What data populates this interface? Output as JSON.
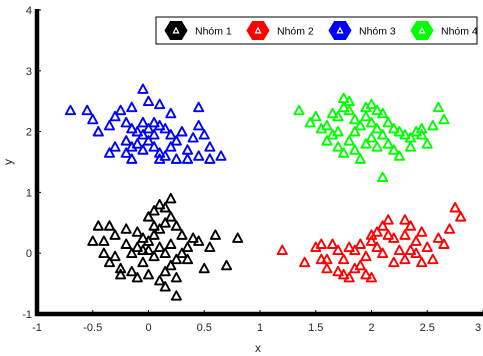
{
  "chart_data": {
    "type": "scatter",
    "title": "",
    "xlabel": "x",
    "ylabel": "y",
    "xlim": [
      -1,
      3
    ],
    "ylim": [
      -1,
      4
    ],
    "x_ticks": [
      "-1",
      "-0.5",
      "0",
      "0.5",
      "1",
      "1.5",
      "2",
      "2.5",
      "3"
    ],
    "y_ticks": [
      "-1",
      "0",
      "1",
      "2",
      "3",
      "4"
    ],
    "grid": false,
    "legend_placement": "top-right",
    "marker": "triangle-outline",
    "series": [
      {
        "name": "Nhóm 1",
        "color": "#000000",
        "points": [
          [
            -0.45,
            0.45
          ],
          [
            -0.35,
            0.45
          ],
          [
            -0.5,
            0.2
          ],
          [
            -0.4,
            0.2
          ],
          [
            -0.3,
            0.3
          ],
          [
            -0.2,
            0.4
          ],
          [
            -0.1,
            0.35
          ],
          [
            -0.05,
            0.25
          ],
          [
            0.0,
            0.2
          ],
          [
            0.05,
            0.3
          ],
          [
            0.1,
            0.4
          ],
          [
            0.15,
            0.5
          ],
          [
            0.2,
            0.6
          ],
          [
            0.25,
            0.45
          ],
          [
            0.3,
            0.3
          ],
          [
            0.0,
            0.6
          ],
          [
            0.05,
            0.7
          ],
          [
            0.15,
            0.75
          ],
          [
            0.2,
            0.9
          ],
          [
            0.1,
            0.8
          ],
          [
            -0.15,
            0.0
          ],
          [
            -0.1,
            0.1
          ],
          [
            0.0,
            0.05
          ],
          [
            0.05,
            -0.05
          ],
          [
            0.1,
            0.1
          ],
          [
            0.15,
            0.0
          ],
          [
            0.2,
            0.15
          ],
          [
            0.25,
            -0.1
          ],
          [
            0.3,
            0.0
          ],
          [
            0.35,
            -0.1
          ],
          [
            -0.4,
            0.0
          ],
          [
            -0.3,
            -0.05
          ],
          [
            -0.35,
            -0.15
          ],
          [
            -0.25,
            -0.25
          ],
          [
            -0.15,
            -0.3
          ],
          [
            -0.05,
            -0.15
          ],
          [
            -0.25,
            -0.35
          ],
          [
            -0.1,
            -0.4
          ],
          [
            0.0,
            -0.35
          ],
          [
            0.1,
            -0.45
          ],
          [
            0.15,
            -0.3
          ],
          [
            0.2,
            -0.2
          ],
          [
            0.25,
            -0.4
          ],
          [
            0.35,
            0.1
          ],
          [
            0.4,
            0.25
          ],
          [
            0.45,
            0.2
          ],
          [
            0.55,
            0.1
          ],
          [
            0.6,
            0.3
          ],
          [
            0.7,
            -0.2
          ],
          [
            0.8,
            0.25
          ],
          [
            0.5,
            -0.25
          ],
          [
            0.25,
            -0.7
          ],
          [
            0.15,
            -0.55
          ],
          [
            -0.2,
            0.15
          ],
          [
            0.05,
            0.45
          ],
          [
            -0.05,
            0.05
          ]
        ]
      },
      {
        "name": "Nhóm 2",
        "color": "#ff0000",
        "points": [
          [
            1.2,
            0.05
          ],
          [
            1.4,
            -0.15
          ],
          [
            1.5,
            0.1
          ],
          [
            1.55,
            0.15
          ],
          [
            1.6,
            -0.1
          ],
          [
            1.65,
            0.15
          ],
          [
            1.7,
            -0.3
          ],
          [
            1.75,
            -0.1
          ],
          [
            1.8,
            0.1
          ],
          [
            1.85,
            0.05
          ],
          [
            1.9,
            -0.2
          ],
          [
            1.95,
            -0.05
          ],
          [
            2.0,
            0.2
          ],
          [
            2.05,
            0.35
          ],
          [
            2.1,
            0.45
          ],
          [
            2.15,
            0.3
          ],
          [
            2.2,
            0.25
          ],
          [
            2.25,
            0.05
          ],
          [
            2.3,
            -0.1
          ],
          [
            2.35,
            0.05
          ],
          [
            2.4,
            0.2
          ],
          [
            2.45,
            0.35
          ],
          [
            2.5,
            0.1
          ],
          [
            2.55,
            -0.1
          ],
          [
            2.6,
            0.25
          ],
          [
            2.65,
            0.15
          ],
          [
            2.7,
            0.4
          ],
          [
            2.75,
            0.75
          ],
          [
            2.8,
            0.6
          ],
          [
            2.15,
            0.55
          ],
          [
            2.3,
            0.55
          ],
          [
            1.7,
            0.05
          ],
          [
            1.75,
            -0.35
          ],
          [
            1.85,
            -0.25
          ],
          [
            1.95,
            -0.35
          ],
          [
            2.0,
            -0.4
          ],
          [
            1.8,
            -0.4
          ],
          [
            1.6,
            -0.25
          ],
          [
            1.55,
            -0.1
          ],
          [
            2.05,
            0.1
          ],
          [
            2.1,
            0.0
          ],
          [
            2.2,
            -0.15
          ],
          [
            2.3,
            0.3
          ],
          [
            2.4,
            0.0
          ],
          [
            2.45,
            -0.15
          ],
          [
            2.0,
            0.3
          ],
          [
            1.9,
            0.15
          ],
          [
            2.35,
            0.45
          ]
        ]
      },
      {
        "name": "Nhóm 3",
        "color": "#0000ff",
        "points": [
          [
            -0.7,
            2.35
          ],
          [
            -0.55,
            2.35
          ],
          [
            -0.5,
            2.2
          ],
          [
            -0.45,
            2.0
          ],
          [
            -0.35,
            2.1
          ],
          [
            -0.3,
            2.25
          ],
          [
            -0.25,
            2.35
          ],
          [
            -0.2,
            2.15
          ],
          [
            -0.15,
            2.05
          ],
          [
            -0.1,
            2.0
          ],
          [
            -0.05,
            1.95
          ],
          [
            0.0,
            2.05
          ],
          [
            0.05,
            2.15
          ],
          [
            0.1,
            2.1
          ],
          [
            0.15,
            2.05
          ],
          [
            0.2,
            1.95
          ],
          [
            0.0,
            2.5
          ],
          [
            0.1,
            2.45
          ],
          [
            -0.05,
            2.7
          ],
          [
            -0.15,
            2.4
          ],
          [
            -0.2,
            1.85
          ],
          [
            -0.15,
            1.75
          ],
          [
            -0.1,
            1.8
          ],
          [
            -0.05,
            1.7
          ],
          [
            0.0,
            1.85
          ],
          [
            0.05,
            1.75
          ],
          [
            0.1,
            1.65
          ],
          [
            0.15,
            1.6
          ],
          [
            0.2,
            1.75
          ],
          [
            0.25,
            1.85
          ],
          [
            0.3,
            2.0
          ],
          [
            0.35,
            1.7
          ],
          [
            0.4,
            1.9
          ],
          [
            0.45,
            2.1
          ],
          [
            0.5,
            1.95
          ],
          [
            0.55,
            1.75
          ],
          [
            0.65,
            1.6
          ],
          [
            0.55,
            1.55
          ],
          [
            0.45,
            1.6
          ],
          [
            0.35,
            1.55
          ],
          [
            0.25,
            1.55
          ],
          [
            0.1,
            1.55
          ],
          [
            -0.15,
            1.55
          ],
          [
            -0.2,
            1.65
          ],
          [
            -0.3,
            1.75
          ],
          [
            -0.35,
            1.65
          ],
          [
            0.45,
            2.4
          ],
          [
            0.05,
            1.95
          ],
          [
            -0.05,
            2.15
          ],
          [
            0.2,
            2.3
          ]
        ]
      },
      {
        "name": "Nhóm 4",
        "color": "#00ff00",
        "points": [
          [
            1.35,
            2.35
          ],
          [
            1.45,
            2.15
          ],
          [
            1.5,
            2.25
          ],
          [
            1.55,
            2.05
          ],
          [
            1.6,
            2.1
          ],
          [
            1.65,
            2.3
          ],
          [
            1.7,
            2.25
          ],
          [
            1.75,
            2.4
          ],
          [
            1.8,
            2.35
          ],
          [
            1.85,
            2.2
          ],
          [
            1.9,
            2.1
          ],
          [
            1.95,
            2.25
          ],
          [
            2.0,
            2.15
          ],
          [
            2.05,
            2.35
          ],
          [
            2.1,
            2.3
          ],
          [
            2.15,
            2.15
          ],
          [
            2.2,
            2.05
          ],
          [
            2.25,
            2.0
          ],
          [
            2.3,
            1.95
          ],
          [
            2.35,
            1.9
          ],
          [
            2.4,
            2.0
          ],
          [
            2.45,
            1.95
          ],
          [
            2.5,
            1.8
          ],
          [
            2.55,
            2.1
          ],
          [
            2.6,
            2.4
          ],
          [
            2.65,
            2.2
          ],
          [
            1.8,
            2.5
          ],
          [
            1.75,
            2.55
          ],
          [
            1.95,
            2.4
          ],
          [
            2.0,
            2.45
          ],
          [
            1.6,
            1.85
          ],
          [
            1.65,
            1.95
          ],
          [
            1.7,
            1.75
          ],
          [
            1.75,
            1.65
          ],
          [
            1.8,
            1.85
          ],
          [
            1.85,
            1.7
          ],
          [
            1.9,
            1.55
          ],
          [
            1.95,
            1.8
          ],
          [
            2.0,
            1.9
          ],
          [
            2.05,
            1.75
          ],
          [
            2.1,
            1.95
          ],
          [
            2.15,
            1.8
          ],
          [
            2.2,
            1.7
          ],
          [
            2.25,
            1.6
          ],
          [
            2.35,
            1.75
          ],
          [
            2.1,
            1.25
          ],
          [
            1.7,
            2.0
          ],
          [
            2.05,
            2.05
          ],
          [
            1.85,
            2.0
          ],
          [
            2.45,
            2.05
          ]
        ]
      }
    ]
  }
}
